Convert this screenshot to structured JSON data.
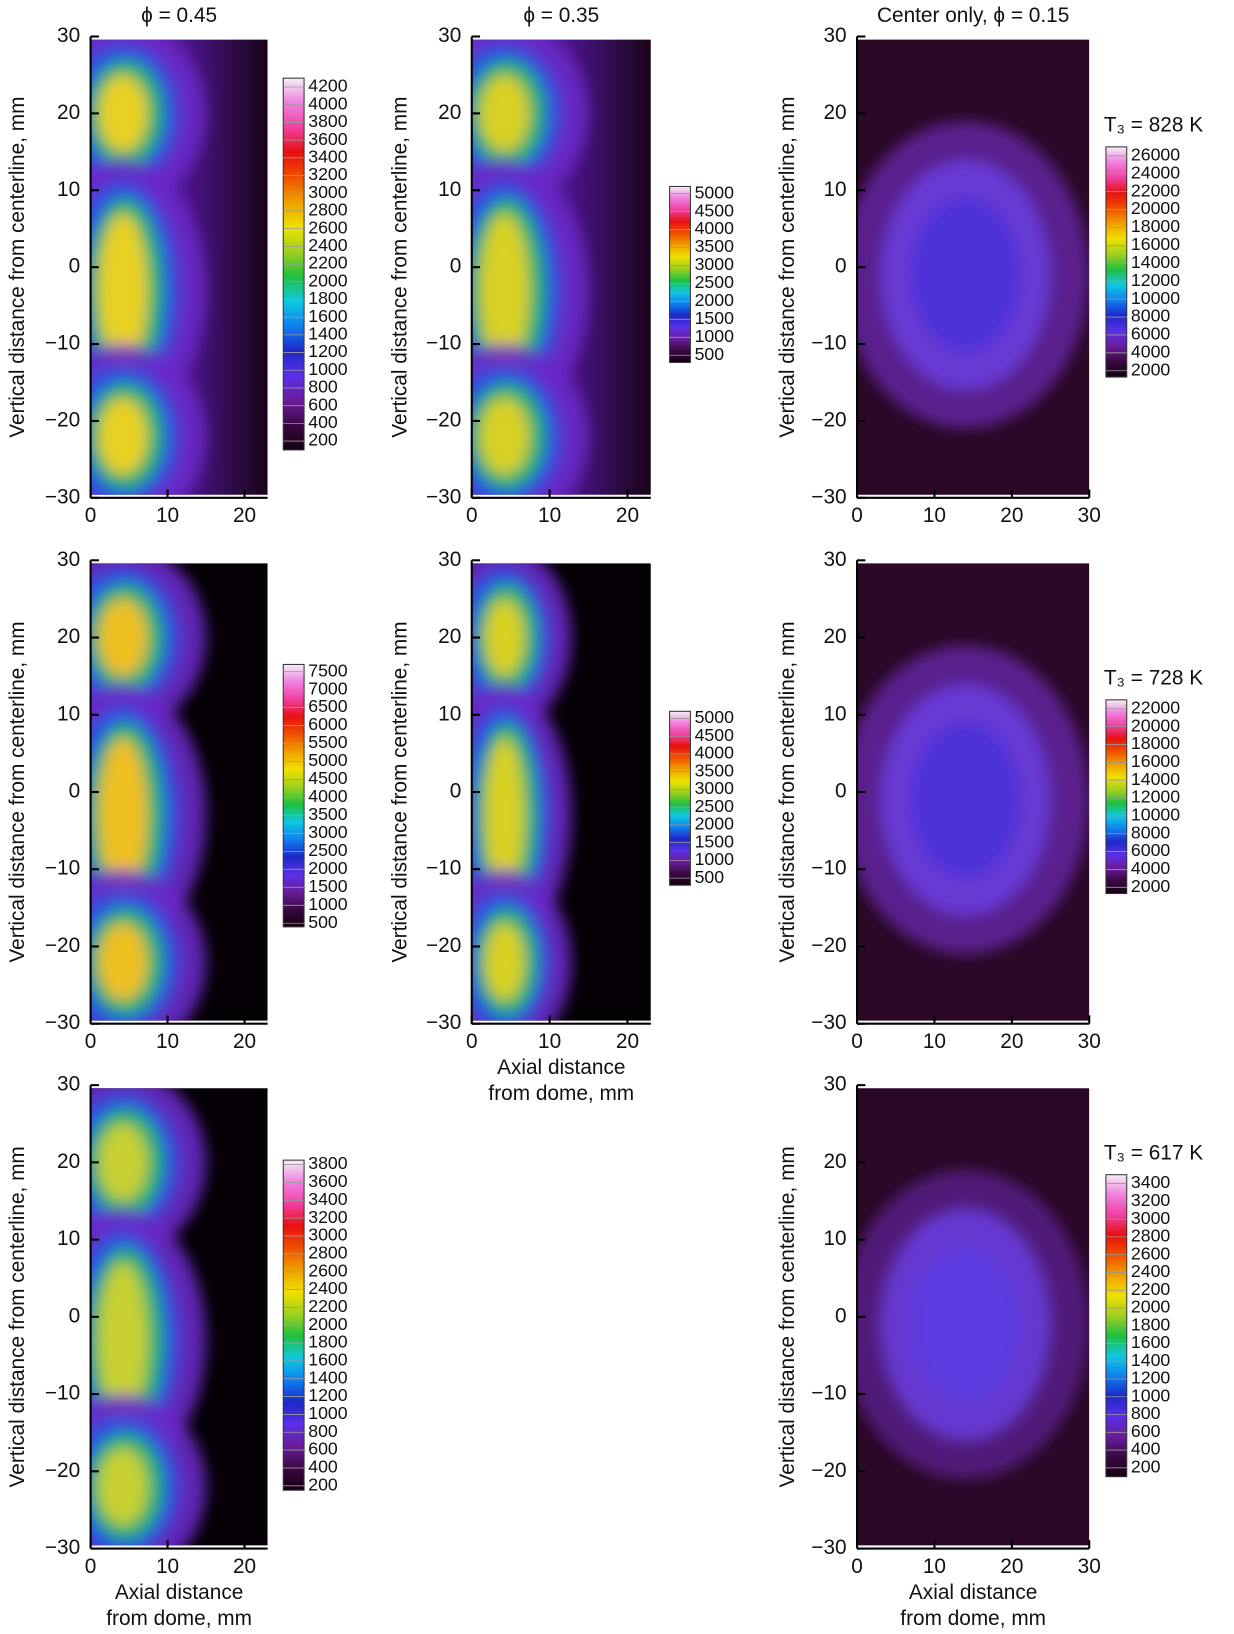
{
  "colormap": [
    "#14000f",
    "#3a0842",
    "#6a1c9c",
    "#5a30e8",
    "#1c28c8",
    "#1080f0",
    "#10c8e0",
    "#20c040",
    "#a0d020",
    "#f0e000",
    "#f0a000",
    "#f05000",
    "#e81010",
    "#f040a0",
    "#f080e0",
    "#f4f0f4"
  ],
  "chart_data": [
    {
      "type": "heatmap",
      "title": "ϕ = 0.45",
      "ylabel": "Vertical distance from centerline, mm",
      "xlim": [
        0,
        23
      ],
      "xticks": [
        0,
        10,
        20
      ],
      "ylim": [
        -30,
        30
      ],
      "yticks": [
        {
          "value": -30,
          "label": "−30"
        },
        {
          "value": -20,
          "label": "−20"
        },
        {
          "value": -10,
          "label": "−10"
        },
        0,
        10,
        20,
        30
      ],
      "colorbar": {
        "lim": [
          100,
          4300
        ],
        "ticks": [
          200,
          400,
          600,
          800,
          1000,
          1200,
          1400,
          1600,
          1800,
          2000,
          2200,
          2400,
          2600,
          2800,
          3000,
          3200,
          3400,
          3600,
          3800,
          4000,
          4200
        ]
      }
    },
    {
      "type": "heatmap",
      "title": "ϕ = 0.35",
      "ylabel": "Vertical distance from centerline, mm",
      "xlim": [
        0,
        23
      ],
      "xticks": [
        0,
        10,
        20
      ],
      "ylim": [
        -30,
        30
      ],
      "yticks": [
        {
          "value": -30,
          "label": "−30"
        },
        {
          "value": -20,
          "label": "−20"
        },
        {
          "value": -10,
          "label": "−10"
        },
        0,
        10,
        20,
        30
      ],
      "colorbar": {
        "lim": [
          300,
          5200
        ],
        "ticks": [
          500,
          1000,
          1500,
          2000,
          2500,
          3000,
          3500,
          4000,
          4500,
          5000
        ]
      }
    },
    {
      "type": "heatmap",
      "title": "Center only, ϕ = 0.15",
      "ylabel": "Vertical distance from centerline, mm",
      "xlim": [
        0,
        30
      ],
      "xticks": [
        0,
        10,
        20,
        30
      ],
      "ylim": [
        -30,
        30
      ],
      "yticks": [
        {
          "value": -30,
          "label": "−30"
        },
        {
          "value": -20,
          "label": "−20"
        },
        {
          "value": -10,
          "label": "−10"
        },
        0,
        10,
        20,
        30
      ],
      "colorbar": {
        "label": "T₃ = 828 K",
        "lim": [
          1300,
          27000
        ],
        "ticks": [
          2000,
          4000,
          6000,
          8000,
          10000,
          12000,
          14000,
          16000,
          18000,
          20000,
          22000,
          24000,
          26000
        ]
      }
    },
    {
      "type": "heatmap",
      "ylabel": "Vertical distance from centerline, mm",
      "xlim": [
        0,
        23
      ],
      "xticks": [
        0,
        10,
        20
      ],
      "ylim": [
        -30,
        30
      ],
      "yticks": [
        {
          "value": -30,
          "label": "−30"
        },
        {
          "value": -20,
          "label": "−20"
        },
        {
          "value": -10,
          "label": "−10"
        },
        0,
        10,
        20,
        30
      ],
      "colorbar": {
        "lim": [
          400,
          7700
        ],
        "ticks": [
          500,
          1000,
          1500,
          2000,
          2500,
          3000,
          3500,
          4000,
          4500,
          5000,
          5500,
          6000,
          6500,
          7000,
          7500
        ]
      }
    },
    {
      "type": "heatmap",
      "ylabel": "Vertical distance from centerline, mm",
      "xlabel": [
        "Axial distance",
        "from dome, mm"
      ],
      "xlim": [
        0,
        23
      ],
      "xticks": [
        0,
        10,
        20
      ],
      "ylim": [
        -30,
        30
      ],
      "yticks": [
        {
          "value": -30,
          "label": "−30"
        },
        {
          "value": -20,
          "label": "−20"
        },
        {
          "value": -10,
          "label": "−10"
        },
        0,
        10,
        20,
        30
      ],
      "colorbar": {
        "lim": [
          300,
          5200
        ],
        "ticks": [
          500,
          1000,
          1500,
          2000,
          2500,
          3000,
          3500,
          4000,
          4500,
          5000
        ]
      }
    },
    {
      "type": "heatmap",
      "ylabel": "Vertical distance from centerline, mm",
      "xlim": [
        0,
        30
      ],
      "xticks": [
        0,
        10,
        20,
        30
      ],
      "ylim": [
        -30,
        30
      ],
      "yticks": [
        {
          "value": -30,
          "label": "−30"
        },
        {
          "value": -20,
          "label": "−20"
        },
        {
          "value": -10,
          "label": "−10"
        },
        0,
        10,
        20,
        30
      ],
      "colorbar": {
        "label": "T₃ = 728 K",
        "lim": [
          1300,
          23000
        ],
        "ticks": [
          2000,
          4000,
          6000,
          8000,
          10000,
          12000,
          14000,
          16000,
          18000,
          20000,
          22000
        ]
      }
    },
    {
      "type": "heatmap",
      "ylabel": "Vertical distance from centerline, mm",
      "xlabel": [
        "Axial distance",
        "from dome, mm"
      ],
      "xlim": [
        0,
        23
      ],
      "xticks": [
        0,
        10,
        20
      ],
      "ylim": [
        -30,
        30
      ],
      "yticks": [
        {
          "value": -30,
          "label": "−30"
        },
        {
          "value": -20,
          "label": "−20"
        },
        {
          "value": -10,
          "label": "−10"
        },
        0,
        10,
        20,
        30
      ],
      "colorbar": {
        "lim": [
          150,
          3850
        ],
        "ticks": [
          200,
          400,
          600,
          800,
          1000,
          1200,
          1400,
          1600,
          1800,
          2000,
          2200,
          2400,
          2600,
          2800,
          3000,
          3200,
          3400,
          3600,
          3800
        ]
      }
    },
    {
      "type": "heatmap",
      "ylabel": "Vertical distance from centerline, mm",
      "xlabel": [
        "Axial distance",
        "from dome, mm"
      ],
      "xlim": [
        0,
        30
      ],
      "xticks": [
        0,
        10,
        20,
        30
      ],
      "ylim": [
        -30,
        30
      ],
      "yticks": [
        {
          "value": -30,
          "label": "−30"
        },
        {
          "value": -20,
          "label": "−20"
        },
        {
          "value": -10,
          "label": "−10"
        },
        0,
        10,
        20,
        30
      ],
      "colorbar": {
        "label": "T₃ = 617 K",
        "lim": [
          100,
          3500
        ],
        "ticks": [
          200,
          400,
          600,
          800,
          1000,
          1200,
          1400,
          1600,
          1800,
          2000,
          2200,
          2400,
          2600,
          2800,
          3000,
          3200,
          3400
        ]
      }
    }
  ]
}
